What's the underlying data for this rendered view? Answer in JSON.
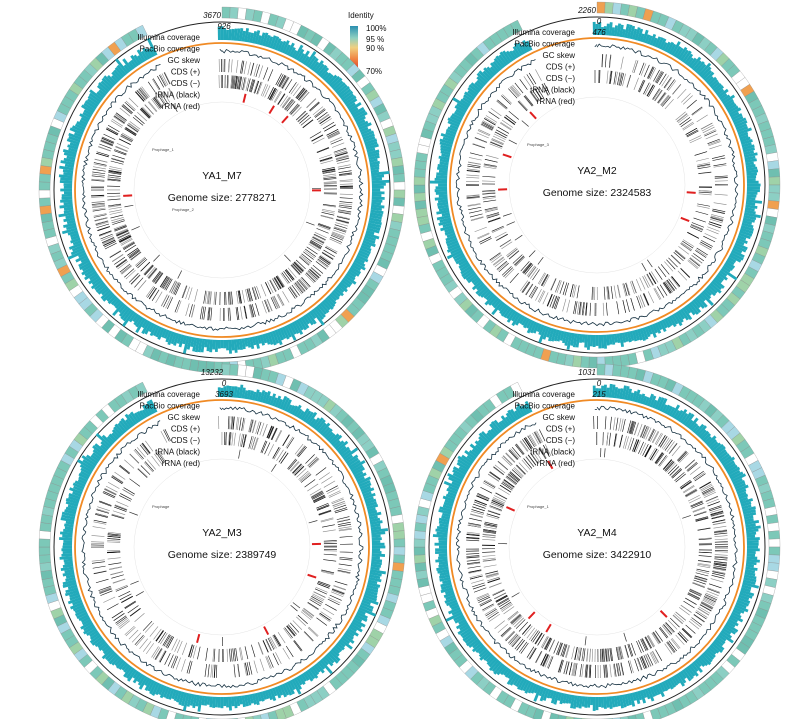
{
  "legend": {
    "title": "Identity",
    "labels": [
      "100%",
      "95 %",
      "90 %",
      "70%"
    ]
  },
  "panels": [
    {
      "name": "YA1_M7",
      "genome_size": "Genome size: 2778271",
      "tracks": [
        "Illumina coverage",
        "PacBio coverage",
        "GC skew",
        "CDS (+)",
        "CDS (−)",
        "tRNA (black)",
        "rRNA (red)"
      ],
      "scale": [
        "3670",
        "926"
      ],
      "annotations": [
        "Prophage_1",
        "Prophage_2"
      ]
    },
    {
      "name": "YA2_M2",
      "genome_size": "Genome size: 2324583",
      "tracks": [
        "Illumina coverage",
        "PacBio coverage",
        "GC skew",
        "CDS (+)",
        "CDS (−)",
        "tRNA (black)",
        "rRNA (red)"
      ],
      "scale": [
        "2260",
        "0",
        "476"
      ],
      "annotations": [
        "Prophage_3"
      ]
    },
    {
      "name": "YA2_M3",
      "genome_size": "Genome size: 2389749",
      "tracks": [
        "Illumina coverage",
        "PacBio coverage",
        "GC skew",
        "CDS (+)",
        "CDS (−)",
        "tRNA (black)",
        "rRNA (red)"
      ],
      "scale": [
        "13232",
        "0",
        "3693"
      ],
      "annotations": [
        "Prophage"
      ]
    },
    {
      "name": "YA2_M4",
      "genome_size": "Genome size: 3422910",
      "tracks": [
        "Illumina coverage",
        "PacBio coverage",
        "GC skew",
        "CDS (+)",
        "CDS (−)",
        "tRNA (black)",
        "rRNA (red)"
      ],
      "scale": [
        "1031",
        "0",
        "215"
      ],
      "annotations": [
        "Prophage_1"
      ]
    }
  ]
}
